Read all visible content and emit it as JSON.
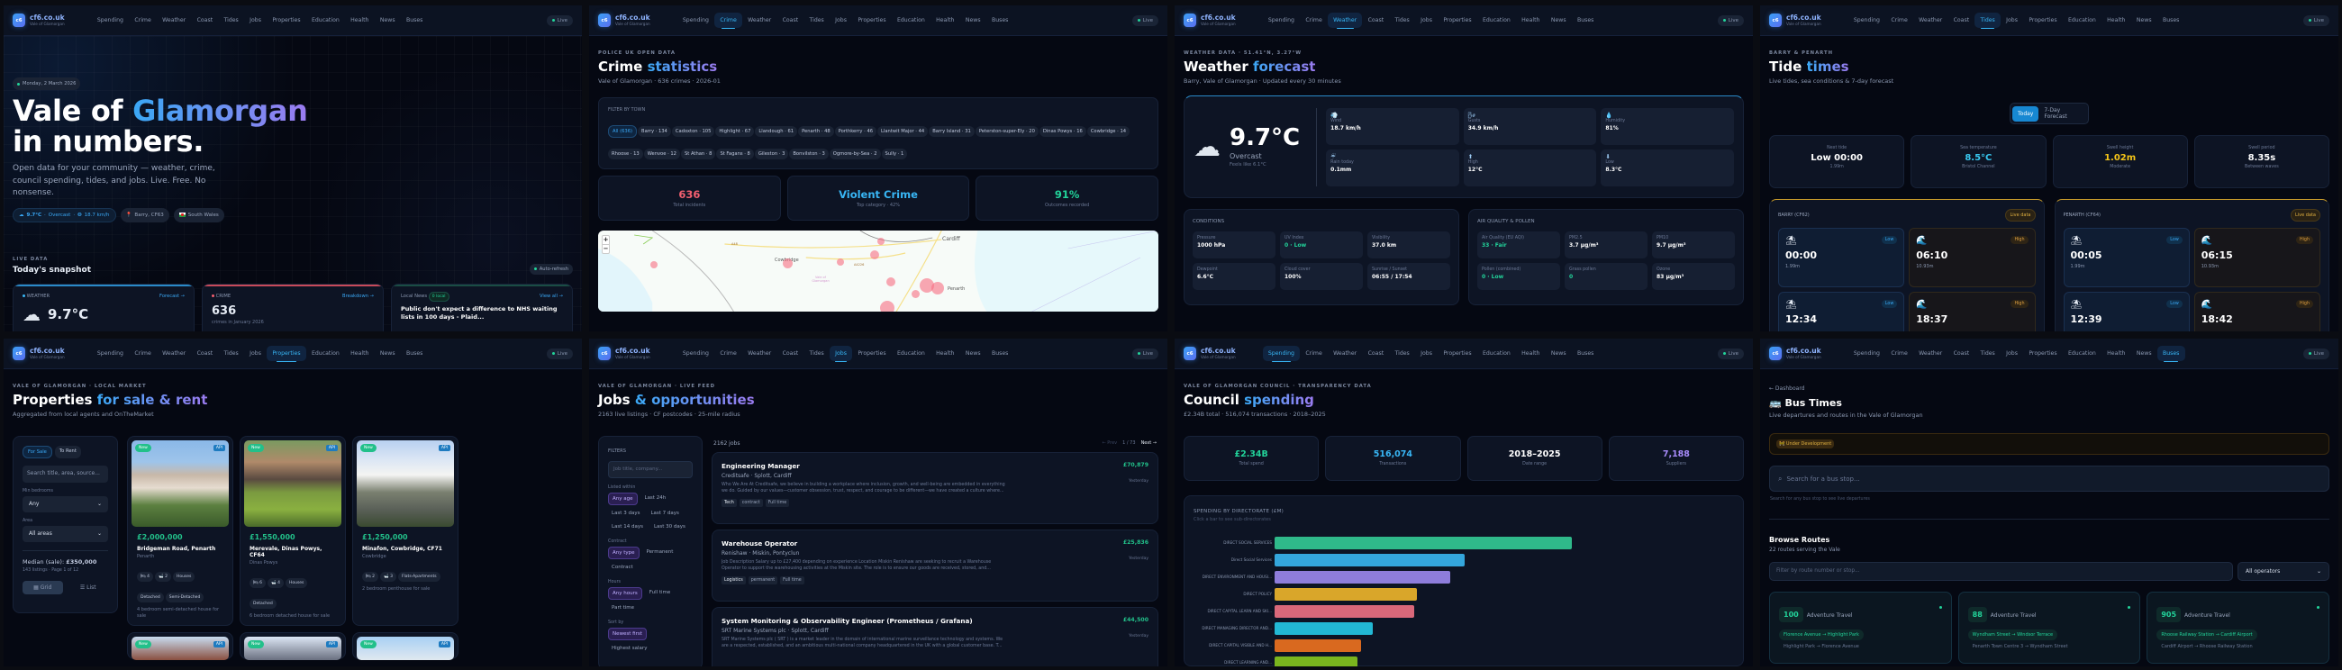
{
  "nav": {
    "logo_text": "c6",
    "brand": "cf6.co.uk",
    "brand_sub": "Vale of Glamorgan",
    "links": [
      "Spending",
      "Crime",
      "Weather",
      "Coast",
      "Tides",
      "Jobs",
      "Properties",
      "Education",
      "Health",
      "News",
      "Buses"
    ],
    "live_label": "Live"
  },
  "home": {
    "date_chip": "Monday, 2 March 2026",
    "title_plain": "Vale of ",
    "title_accent": "Glamorgan",
    "title_line2": "in numbers.",
    "lead": "Open data for your community — weather, crime, council spending, tides, and jobs. Live. Free. No nonsense.",
    "weather_pill": {
      "temp": "9.7°C",
      "cond": "Overcast",
      "wind": "18.7 km/h"
    },
    "location_pill": "Barry, CF63",
    "region_pill": "South Wales",
    "eyebrow": "LIVE DATA",
    "snapshot_title": "Today's snapshot",
    "auto_refresh": "Auto-refresh",
    "cards": {
      "weather": {
        "label": "WEATHER",
        "link": "Forecast →",
        "temp": "9.7°C",
        "cond": "Overcast"
      },
      "crime": {
        "label": "CRIME",
        "link": "Breakdown →",
        "value": "636",
        "caption": "crimes in January 2026"
      },
      "news": {
        "label": "Local News",
        "badge": "0 local",
        "link": "View all →",
        "headline": "Public don't expect a difference to NHS waiting lists in 100 days - Plaid..."
      }
    }
  },
  "crime": {
    "eyebrow": "POLICE UK OPEN DATA",
    "title_plain": "Crime ",
    "title_accent": "statistics",
    "sub": "Vale of Glamorgan · 636 crimes · 2026-01",
    "filter_label": "FILTER BY TOWN",
    "towns": [
      "All (636)",
      "Barry · 134",
      "Cadoxton · 105",
      "Highlight · 67",
      "Llandough · 61",
      "Penarth · 48",
      "Porthkerry · 46",
      "Llantwit Major · 44",
      "Barry Island · 31",
      "Peterston-super-Ely · 20",
      "Dinas Powys · 16",
      "Cowbridge · 14",
      "Rhoose · 13",
      "Wenvoe · 12",
      "St Athan · 8",
      "St Fagans · 8",
      "Gileston · 3",
      "Bonvilston · 3",
      "Ogmore-by-Sea · 2",
      "Sully · 1"
    ],
    "stats": [
      {
        "value": "636",
        "label": "Total incidents",
        "color": "#f25f6f"
      },
      {
        "value": "Violent Crime",
        "label": "Top category · 42%",
        "color": "#38b6f5"
      },
      {
        "value": "91%",
        "label": "Outcomes recorded",
        "color": "#22d39a"
      }
    ],
    "map": {
      "zoom_in": "+",
      "zoom_out": "−",
      "labels": [
        "Cardiff",
        "Cowbridge",
        "Penarth",
        "A48",
        "A4226",
        "A4232",
        "A4160",
        "A4050",
        "Vale of Glamorgan"
      ]
    }
  },
  "weather": {
    "eyebrow": "WEATHER DATA · 51.41°N, 3.27°W",
    "title_plain": "Weather ",
    "title_accent": "forecast",
    "sub": "Barry, Vale of Glamorgan · Updated every 30 minutes",
    "temp": "9.7°C",
    "cond": "Overcast",
    "feels": "Feels like 6.1°C",
    "stats": [
      {
        "icon": "💨",
        "label": "Wind",
        "value": "18.7 km/h"
      },
      {
        "icon": "🌬",
        "label": "Gusts",
        "value": "34.9 km/h"
      },
      {
        "icon": "💧",
        "label": "Humidity",
        "value": "81%"
      },
      {
        "icon": "☔",
        "label": "Rain today",
        "value": "0.1mm"
      },
      {
        "icon": "⬆",
        "label": "High",
        "value": "12°C"
      },
      {
        "icon": "⬇",
        "label": "Low",
        "value": "8.3°C"
      }
    ],
    "conditions_title": "CONDITIONS",
    "conditions": [
      {
        "label": "Pressure",
        "value": "1000 hPa"
      },
      {
        "label": "UV Index",
        "value": "0 · Low",
        "good": true
      },
      {
        "label": "Visibility",
        "value": "37.0 km"
      },
      {
        "label": "Dewpoint",
        "value": "6.6°C"
      },
      {
        "label": "Cloud cover",
        "value": "100%"
      },
      {
        "label": "Sunrise / Sunset",
        "value": "06:55 / 17:54"
      }
    ],
    "air_title": "AIR QUALITY & POLLEN",
    "air": [
      {
        "label": "Air Quality (EU AQI)",
        "value": "33 · Fair",
        "good": true
      },
      {
        "label": "PM2.5",
        "value": "3.7 µg/m³"
      },
      {
        "label": "PM10",
        "value": "9.7 µg/m³"
      },
      {
        "label": "Pollen (combined)",
        "value": "0 · Low",
        "good": true
      },
      {
        "label": "Grass pollen",
        "value": "0",
        "good": true
      },
      {
        "label": "Ozone",
        "value": "83 µg/m³"
      }
    ]
  },
  "tides": {
    "eyebrow": "BARRY & PENARTH",
    "title_plain": "Tide ",
    "title_accent": "times",
    "sub": "Live tides, sea conditions & 7-day forecast",
    "tabs": [
      "Today",
      "7-Day Forecast"
    ],
    "stats": [
      {
        "label": "Next tide",
        "value": "Low 00:00",
        "sub": "1.99m",
        "color": "#ffffff"
      },
      {
        "label": "Sea temperature",
        "value": "8.5°C",
        "sub": "Bristol Channel",
        "color": "#38c8f0"
      },
      {
        "label": "Swell height",
        "value": "1.02m",
        "sub": "Moderate",
        "color": "#f5c518"
      },
      {
        "label": "Swell period",
        "value": "8.35s",
        "sub": "Between waves",
        "color": "#ffffff"
      }
    ],
    "live_badge": "Live data",
    "locations": [
      {
        "name": "BARRY (CF62)",
        "tides": [
          {
            "type": "Low",
            "time": "00:00",
            "height": "1.99m"
          },
          {
            "type": "High",
            "time": "06:10",
            "height": "10.93m"
          },
          {
            "type": "Low",
            "time": "12:34",
            "height": ""
          },
          {
            "type": "High",
            "time": "18:37",
            "height": ""
          }
        ]
      },
      {
        "name": "PENARTH (CF64)",
        "tides": [
          {
            "type": "Low",
            "time": "00:05",
            "height": "1.99m"
          },
          {
            "type": "High",
            "time": "06:15",
            "height": "10.93m"
          },
          {
            "type": "Low",
            "time": "12:39",
            "height": ""
          },
          {
            "type": "High",
            "time": "18:42",
            "height": ""
          }
        ]
      }
    ]
  },
  "properties": {
    "eyebrow": "VALE OF GLAMORGAN · LOCAL MARKET",
    "title_plain": "Properties ",
    "title_accent": "for sale & rent",
    "sub": "Aggregated from local agents and OnTheMarket",
    "toggle": [
      "For Sale",
      "To Rent"
    ],
    "search_placeholder": "Search title, area, source...",
    "min_bed_label": "Min bedrooms",
    "min_bed_value": "Any",
    "area_label": "Area",
    "area_value": "All areas",
    "median_label": "Median (sale): ",
    "median_value": "£350,000",
    "listings_info": "143 listings · Page 1 of 12",
    "view_grid": "Grid",
    "view_list": "List",
    "new_badge": "New",
    "api_badge": "API",
    "listings": [
      {
        "price": "£2,000,000",
        "title": "Bridgeman Road, Penarth",
        "area": "Penarth",
        "beds": "4",
        "baths": "2",
        "tags": [
          "Houses",
          "Detached",
          "Semi-Detached"
        ],
        "desc": "4 bedroom semi-detached house for sale"
      },
      {
        "price": "£1,550,000",
        "title": "Merevale, Dinas Powys, CF64",
        "area": "Dinas Powys",
        "beds": "6",
        "baths": "4",
        "tags": [
          "Houses",
          "Detached"
        ],
        "desc": "6 bedroom detached house for sale"
      },
      {
        "price": "£1,250,000",
        "title": "Minafon, Cowbridge, CF71",
        "area": "Cowbridge",
        "beds": "2",
        "baths": "3",
        "tags": [
          "Flats-Apartments"
        ],
        "desc": "2 bedroom penthouse for sale"
      }
    ]
  },
  "jobs": {
    "eyebrow": "VALE OF GLAMORGAN · LIVE FEED",
    "title_plain": "Jobs ",
    "title_accent": "& opportunities",
    "sub": "2163 live listings · CF postcodes · 25-mile radius",
    "filters_title": "FILTERS",
    "search_placeholder": "Job title, company...",
    "groups": [
      {
        "label": "Listed within",
        "options": [
          "Any age",
          "Last 24h",
          "Last 3 days",
          "Last 7 days",
          "Last 14 days",
          "Last 30 days"
        ]
      },
      {
        "label": "Contract",
        "options": [
          "Any type",
          "Permanent",
          "Contract"
        ]
      },
      {
        "label": "Hours",
        "options": [
          "Any hours",
          "Full time",
          "Part time"
        ]
      },
      {
        "label": "Sort by",
        "options": [
          "Newest first",
          "Highest salary"
        ]
      }
    ],
    "count": "2162 jobs",
    "prev": "← Prev",
    "page": "1 / 73",
    "next": "Next →",
    "listings": [
      {
        "title": "Engineering Manager",
        "company": "Creditsafe · Splott, Cardiff",
        "desc": "Who We Are At Creditsafe, we believe in building a workplace where inclusion, growth, and well-being are embedded in everything we do. Guided by our values—customer obsession, trust, respect, and courage to be different—we have created a culture where...",
        "tags": [
          "Tech",
          "contract",
          "Full time"
        ],
        "salary": "£70,879",
        "posted": "Yesterday"
      },
      {
        "title": "Warehouse Operator",
        "company": "Renishaw · Miskin, Pontyclun",
        "desc": "Job Description Salary up to £27,400 depending on experience Location Miskin Renishaw are seeking to recruit a Warehouse Operator to support the warehousing activities at the Miskin site. The role is to ensure our goods are received, stored, and...",
        "tags": [
          "Logistics",
          "permanent",
          "Full time"
        ],
        "salary": "£25,836",
        "posted": "Yesterday"
      },
      {
        "title": "System Monitoring & Observability Engineer (Prometheus / Grafana)",
        "company": "SRT Marine Systems plc · Splott, Cardiff",
        "desc": "SRT Marine Systems plc ( SRT ) is a market leader in the domain of international marine surveillance technology and systems. We are a respected, established, and an ambitious multi-national company headquartered in the UK with a global customer base. T...",
        "tags": [],
        "salary": "£44,500",
        "posted": "Yesterday"
      }
    ]
  },
  "spending": {
    "eyebrow": "VALE OF GLAMORGAN COUNCIL · TRANSPARENCY DATA",
    "title_plain": "Council ",
    "title_accent": "spending",
    "sub": "£2.34B total · 516,074 transactions · 2018–2025",
    "stats": [
      {
        "value": "£2.34B",
        "label": "Total spend",
        "color": "#22d39a"
      },
      {
        "value": "516,074",
        "label": "Transactions",
        "color": "#38b6f5"
      },
      {
        "value": "2018–2025",
        "label": "Date range",
        "color": "#ffffff"
      },
      {
        "value": "7,188",
        "label": "Suppliers",
        "color": "#a78bfa"
      }
    ],
    "chart_title": "SPENDING BY DIRECTORATE (£M)",
    "chart_hint": "Click a bar to see sub-directorates"
  },
  "chart_data": {
    "type": "bar",
    "orientation": "horizontal",
    "title": "SPENDING BY DIRECTORATE (£M)",
    "subtitle": "Click a bar to see sub-directorates",
    "categories": [
      "DIRECT SOCIAL SERVICES",
      "Direct Social Services",
      "DIRECT ENVIRONMENT AND HOUSI...",
      "DIRECT POLICY",
      "DIRECT CAPITAL LEARN AND SKI...",
      "DIRECT MANAGING DIRECTOR AND...",
      "DIRECT CAPITAL VISIBLE AND H...",
      "DIRECT LEARNING AND..."
    ],
    "values": [
      100,
      64,
      59,
      48,
      47,
      33,
      29,
      28
    ],
    "colors": [
      "#2fb98a",
      "#34a6dc",
      "#8e7ddb",
      "#d9a62a",
      "#d9687a",
      "#22b8d4",
      "#d9691f",
      "#7ab51e"
    ],
    "xlabel": "",
    "ylabel": "",
    "grid": false,
    "note": "Values are relative bar lengths (no axis shown)"
  },
  "buses": {
    "back": "← Dashboard",
    "title": "Bus Times",
    "sub": "Live departures and routes in the Vale of Glamorgan",
    "dev_badge": "Under Development",
    "search_placeholder": "Search for a bus stop...",
    "search_hint": "Search for any bus stop to see live departures",
    "browse_title": "Browse Routes",
    "browse_sub": "22 routes serving the Vale",
    "filter_placeholder": "Filter by route number or stop...",
    "operator_value": "All operators",
    "routes": [
      {
        "number": "100",
        "operator": "Adventure Travel",
        "path": "Florence Avenue → Highlight Park",
        "reverse": "Highlight Park → Florence Avenue"
      },
      {
        "number": "88",
        "operator": "Adventure Travel",
        "path": "Wyndham Street → Windsor Terrace",
        "reverse": "Penarth Town Centre 3 → Wyndham Street"
      },
      {
        "number": "905",
        "operator": "Adventure Travel",
        "path": "Rhoose Railway Station → Cardiff Airport",
        "reverse": "Cardiff Airport → Rhoose Railway Station"
      }
    ]
  }
}
